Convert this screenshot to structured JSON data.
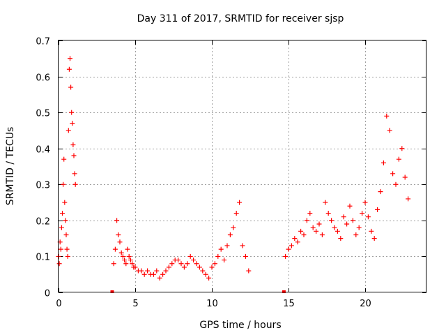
{
  "chart_data": {
    "type": "scatter",
    "title": "Day 311 of 2017, SRMTID for receiver sjsp",
    "xlabel": "GPS time / hours",
    "ylabel": "SRMTID / TECUs",
    "xlim": [
      0,
      24
    ],
    "ylim": [
      0,
      0.7
    ],
    "xticks": [
      0,
      5,
      10,
      15,
      20
    ],
    "xtick_labels": [
      "0",
      "5",
      "10",
      "15",
      "20"
    ],
    "yticks": [
      0,
      0.1,
      0.2,
      0.3,
      0.4,
      0.5,
      0.6,
      0.7
    ],
    "ytick_labels": [
      "0",
      "0.1",
      "0.2",
      "0.3",
      "0.4",
      "0.5",
      "0.6",
      "0.7"
    ],
    "grid": true,
    "marker": "plus",
    "color": "#ff0000",
    "series": [
      {
        "name": "SRMTID",
        "x": [
          0.0,
          0.05,
          0.1,
          0.15,
          0.2,
          0.25,
          0.3,
          0.35,
          0.4,
          0.45,
          0.5,
          0.55,
          0.6,
          0.65,
          0.7,
          0.75,
          0.8,
          0.85,
          0.9,
          0.95,
          1.0,
          1.05,
          1.1,
          3.5,
          3.6,
          3.7,
          3.8,
          3.9,
          4.0,
          4.1,
          4.2,
          4.3,
          4.4,
          4.5,
          4.6,
          4.7,
          4.8,
          4.9,
          5.0,
          5.2,
          5.4,
          5.6,
          5.8,
          6.0,
          6.2,
          6.4,
          6.6,
          6.8,
          7.0,
          7.2,
          7.4,
          7.6,
          7.8,
          8.0,
          8.2,
          8.4,
          8.6,
          8.8,
          9.0,
          9.2,
          9.4,
          9.6,
          9.8,
          10.0,
          10.2,
          10.4,
          10.6,
          10.8,
          11.0,
          11.2,
          11.4,
          11.6,
          11.8,
          12.0,
          12.2,
          12.4,
          14.7,
          14.8,
          15.0,
          15.2,
          15.4,
          15.6,
          15.8,
          16.0,
          16.2,
          16.4,
          16.6,
          16.8,
          17.0,
          17.2,
          17.4,
          17.6,
          17.8,
          18.0,
          18.2,
          18.4,
          18.6,
          18.8,
          19.0,
          19.2,
          19.4,
          19.6,
          19.8,
          20.0,
          20.2,
          20.4,
          20.6,
          20.8,
          21.0,
          21.2,
          21.4,
          21.6,
          21.8,
          22.0,
          22.2,
          22.4,
          22.6,
          22.8
        ],
        "y": [
          0.1,
          0.08,
          0.14,
          0.12,
          0.18,
          0.22,
          0.3,
          0.37,
          0.25,
          0.2,
          0.16,
          0.12,
          0.1,
          0.45,
          0.62,
          0.65,
          0.57,
          0.5,
          0.47,
          0.41,
          0.38,
          0.33,
          0.3,
          0.0,
          0.08,
          0.12,
          0.2,
          0.16,
          0.14,
          0.11,
          0.1,
          0.09,
          0.08,
          0.12,
          0.1,
          0.09,
          0.08,
          0.07,
          0.07,
          0.06,
          0.06,
          0.05,
          0.06,
          0.05,
          0.05,
          0.06,
          0.04,
          0.05,
          0.06,
          0.07,
          0.08,
          0.09,
          0.09,
          0.08,
          0.07,
          0.08,
          0.1,
          0.09,
          0.08,
          0.07,
          0.06,
          0.05,
          0.04,
          0.07,
          0.08,
          0.1,
          0.12,
          0.09,
          0.13,
          0.16,
          0.18,
          0.22,
          0.25,
          0.13,
          0.1,
          0.06,
          0.0,
          0.1,
          0.12,
          0.13,
          0.15,
          0.14,
          0.17,
          0.16,
          0.2,
          0.22,
          0.18,
          0.17,
          0.19,
          0.16,
          0.25,
          0.22,
          0.2,
          0.18,
          0.17,
          0.15,
          0.21,
          0.19,
          0.24,
          0.2,
          0.16,
          0.18,
          0.22,
          0.25,
          0.21,
          0.17,
          0.15,
          0.23,
          0.28,
          0.36,
          0.49,
          0.45,
          0.33,
          0.3,
          0.37,
          0.4,
          0.32,
          0.26
        ]
      }
    ]
  }
}
